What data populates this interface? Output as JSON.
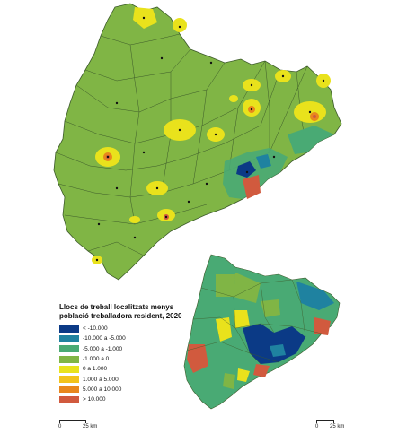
{
  "legend": {
    "title": "Llocs de treball localitzats menys població treballadora resident, 2020",
    "items": [
      {
        "label": "< -10.000",
        "color": "#0b3a86"
      },
      {
        "label": "-10.000 a -5.000",
        "color": "#1f82a0"
      },
      {
        "label": "-5.000 a -1.000",
        "color": "#49aa74"
      },
      {
        "label": "-1.000 a 0",
        "color": "#80b545"
      },
      {
        "label": "0 a 1.000",
        "color": "#e9e21c"
      },
      {
        "label": "1.000 a 5.000",
        "color": "#f2c31b"
      },
      {
        "label": "5.000 a 10.000",
        "color": "#e8871d"
      },
      {
        "label": "> 10.000",
        "color": "#d15a3e"
      }
    ]
  },
  "scalebar_main": {
    "start": "0",
    "end": "25 km"
  },
  "scalebar_inset": {
    "start": "0",
    "end": "25 km"
  },
  "map_colors": {
    "base": "#80b545",
    "border": "#3c5a2a",
    "water": "#ffffff"
  }
}
